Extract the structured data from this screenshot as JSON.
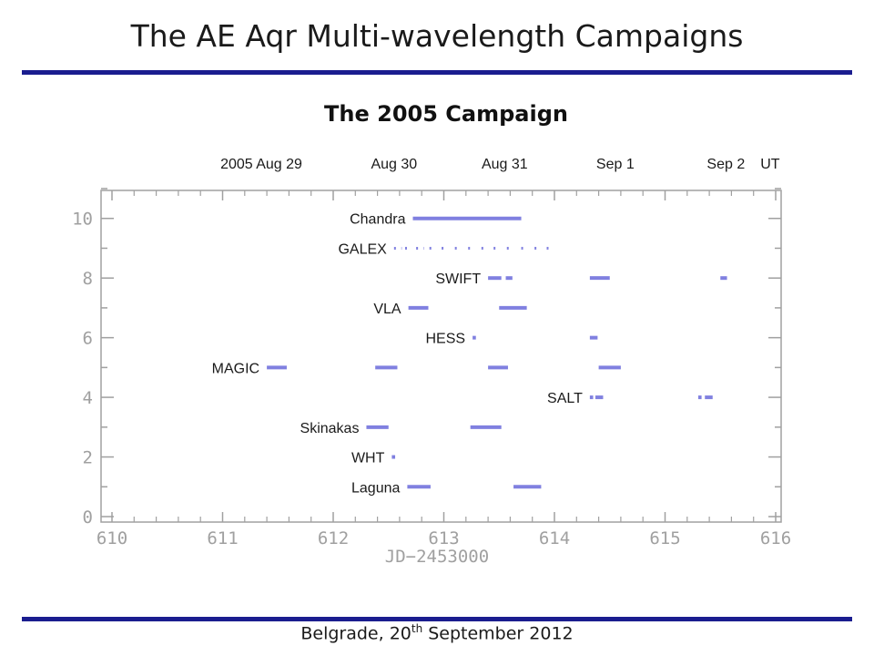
{
  "slide": {
    "title": "The AE Aqr Multi-wavelength Campaigns",
    "footer_pre": "Belgrade, 20",
    "footer_sup": "th",
    "footer_post": " September 2012"
  },
  "colors": {
    "rule": "#1a1d8f",
    "bar": "#8080e0",
    "axis": "#a0a0a0"
  },
  "chart_data": {
    "type": "timeline",
    "title": "The 2005 Campaign",
    "xlabel": "JD−2453000",
    "ylabel": "",
    "xlim": [
      610,
      616
    ],
    "ylim": [
      0,
      11
    ],
    "x_ticks": [
      610,
      611,
      612,
      613,
      614,
      615,
      616
    ],
    "y_ticks": [
      0,
      2,
      4,
      6,
      8,
      10
    ],
    "top_axis_labels": [
      {
        "x": 611.35,
        "label": "2005  Aug 29"
      },
      {
        "x": 612.55,
        "label": "Aug 30"
      },
      {
        "x": 613.55,
        "label": "Aug 31"
      },
      {
        "x": 614.55,
        "label": "Sep 1"
      },
      {
        "x": 615.55,
        "label": "Sep 2"
      },
      {
        "x": 615.95,
        "label": "UT"
      }
    ],
    "series": [
      {
        "name": "Chandra",
        "y": 10,
        "intervals": [
          [
            612.72,
            613.7
          ]
        ]
      },
      {
        "name": "GALEX",
        "y": 9,
        "style": "dotted",
        "intervals": [
          [
            612.55,
            612.62
          ],
          [
            612.65,
            612.7
          ],
          [
            612.75,
            612.82
          ],
          [
            612.87,
            612.93
          ],
          [
            612.98,
            613.04
          ],
          [
            613.1,
            613.16
          ],
          [
            613.22,
            613.28
          ],
          [
            613.34,
            613.4
          ],
          [
            613.45,
            613.51
          ],
          [
            613.57,
            613.63
          ],
          [
            613.7,
            613.76
          ],
          [
            613.82,
            613.88
          ],
          [
            613.93,
            613.99
          ]
        ]
      },
      {
        "name": "SWIFT",
        "y": 8,
        "intervals": [
          [
            613.4,
            613.52
          ],
          [
            613.56,
            613.62
          ],
          [
            614.32,
            614.5
          ],
          [
            615.5,
            615.56
          ]
        ]
      },
      {
        "name": "VLA",
        "y": 7,
        "intervals": [
          [
            612.68,
            612.86
          ],
          [
            613.5,
            613.75
          ]
        ]
      },
      {
        "name": "HESS",
        "y": 6,
        "intervals": [
          [
            613.26,
            613.29
          ],
          [
            614.32,
            614.39
          ]
        ]
      },
      {
        "name": "MAGIC",
        "y": 5,
        "intervals": [
          [
            611.4,
            611.58
          ],
          [
            612.38,
            612.58
          ],
          [
            613.4,
            613.58
          ],
          [
            614.4,
            614.6
          ]
        ]
      },
      {
        "name": "SALT",
        "y": 4,
        "intervals": [
          [
            614.32,
            614.35
          ],
          [
            614.37,
            614.44
          ],
          [
            615.3,
            615.33
          ],
          [
            615.36,
            615.43
          ]
        ]
      },
      {
        "name": "Skinakas",
        "y": 3,
        "intervals": [
          [
            612.3,
            612.5
          ],
          [
            613.24,
            613.52
          ]
        ]
      },
      {
        "name": "WHT",
        "y": 2,
        "intervals": [
          [
            612.53,
            612.56
          ]
        ]
      },
      {
        "name": "Laguna",
        "y": 1,
        "intervals": [
          [
            612.67,
            612.88
          ],
          [
            613.63,
            613.88
          ]
        ]
      }
    ]
  }
}
